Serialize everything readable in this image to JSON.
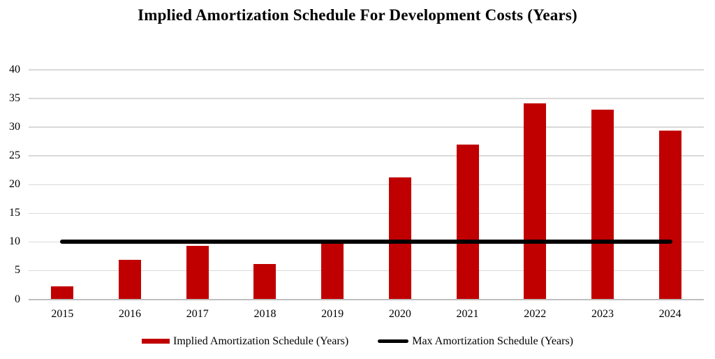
{
  "title": "Implied Amortization Schedule For Development Costs (Years)",
  "chart_data": {
    "type": "bar",
    "title": "Implied Amortization Schedule For Development Costs (Years)",
    "categories": [
      "2015",
      "2016",
      "2017",
      "2018",
      "2019",
      "2020",
      "2021",
      "2022",
      "2023",
      "2024"
    ],
    "series": [
      {
        "name": "Implied Amortization Schedule (Years)",
        "type": "bar",
        "color": "#C00000",
        "values": [
          2.3,
          6.9,
          9.3,
          6.2,
          9.7,
          21.3,
          27.0,
          34.1,
          33.0,
          29.4
        ]
      },
      {
        "name": "Max Amortization Schedule (Years)",
        "type": "line",
        "color": "#000000",
        "values": [
          10,
          10,
          10,
          10,
          10,
          10,
          10,
          10,
          10,
          10
        ]
      }
    ],
    "xlabel": "",
    "ylabel": "",
    "ylim": [
      0,
      40
    ],
    "yticks": [
      0,
      5,
      10,
      15,
      20,
      25,
      30,
      35,
      40
    ],
    "grid": true,
    "legend_position": "bottom"
  },
  "colors": {
    "bar": "#C00000",
    "max_line": "#000000",
    "gridline": "#D9D9D9",
    "axis_line": "#BFBFBF",
    "background": "#FFFFFF",
    "text": "#000000"
  }
}
